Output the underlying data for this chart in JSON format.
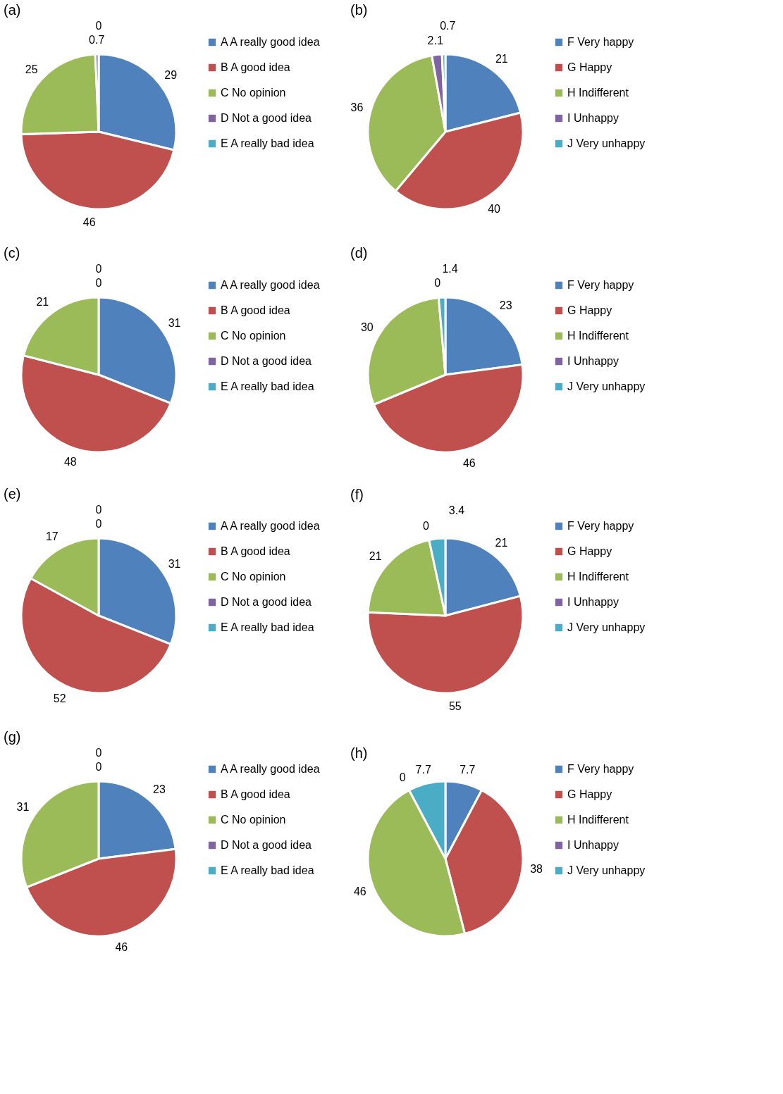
{
  "chart_data": [
    {
      "type": "pie",
      "title": "(a)",
      "categories": [
        "A A really good idea",
        "B A good idea",
        "C No opinion",
        "D Not a good idea",
        "E A really bad idea"
      ],
      "values": [
        29,
        46,
        25,
        0.7,
        0
      ],
      "value_labels": [
        "29",
        "46",
        "25",
        "0.7",
        "0"
      ],
      "colors": [
        "#4f81bd",
        "#c0504d",
        "#9bbb59",
        "#8064a2",
        "#4bacc6"
      ],
      "legend": "right"
    },
    {
      "type": "pie",
      "title": "(b)",
      "categories": [
        "F Very happy",
        "G Happy",
        "H Indifferent",
        "I Unhappy",
        "J Very unhappy"
      ],
      "values": [
        21,
        40,
        36,
        2.1,
        0.7
      ],
      "value_labels": [
        "21",
        "40",
        "36",
        "2.1",
        "0.7"
      ],
      "colors": [
        "#4f81bd",
        "#c0504d",
        "#9bbb59",
        "#8064a2",
        "#4bacc6"
      ],
      "legend": "right"
    },
    {
      "type": "pie",
      "title": "(c)",
      "categories": [
        "A A really good idea",
        "B A good idea",
        "C No opinion",
        "D Not a good idea",
        "E A really bad idea"
      ],
      "values": [
        31,
        48,
        21,
        0,
        0
      ],
      "value_labels": [
        "31",
        "48",
        "21",
        "0",
        "0"
      ],
      "colors": [
        "#4f81bd",
        "#c0504d",
        "#9bbb59",
        "#8064a2",
        "#4bacc6"
      ],
      "legend": "right"
    },
    {
      "type": "pie",
      "title": "(d)",
      "categories": [
        "F Very happy",
        "G Happy",
        "H Indifferent",
        "I Unhappy",
        "J Very unhappy"
      ],
      "values": [
        23,
        46,
        30,
        0,
        1.4
      ],
      "value_labels": [
        "23",
        "46",
        "30",
        "0",
        "1.4"
      ],
      "colors": [
        "#4f81bd",
        "#c0504d",
        "#9bbb59",
        "#8064a2",
        "#4bacc6"
      ],
      "legend": "right"
    },
    {
      "type": "pie",
      "title": "(e)",
      "categories": [
        "A A really good idea",
        "B A good idea",
        "C No opinion",
        "D Not a good idea",
        "E A really bad idea"
      ],
      "values": [
        31,
        52,
        17,
        0,
        0
      ],
      "value_labels": [
        "31",
        "52",
        "17",
        "0",
        "0"
      ],
      "colors": [
        "#4f81bd",
        "#c0504d",
        "#9bbb59",
        "#8064a2",
        "#4bacc6"
      ],
      "legend": "right"
    },
    {
      "type": "pie",
      "title": "(f)",
      "categories": [
        "F Very happy",
        "G Happy",
        "H Indifferent",
        "I Unhappy",
        "J Very unhappy"
      ],
      "values": [
        21,
        55,
        21,
        0,
        3.4
      ],
      "value_labels": [
        "21",
        "55",
        "21",
        "0",
        "3.4"
      ],
      "colors": [
        "#4f81bd",
        "#c0504d",
        "#9bbb59",
        "#8064a2",
        "#4bacc6"
      ],
      "legend": "right"
    },
    {
      "type": "pie",
      "title": "(g)",
      "categories": [
        "A A really good idea",
        "B A good idea",
        "C No opinion",
        "D Not a good idea",
        "E A really bad idea"
      ],
      "values": [
        23,
        46,
        31,
        0,
        0
      ],
      "value_labels": [
        "23",
        "46",
        "31",
        "0",
        "0"
      ],
      "colors": [
        "#4f81bd",
        "#c0504d",
        "#9bbb59",
        "#8064a2",
        "#4bacc6"
      ],
      "legend": "right"
    },
    {
      "type": "pie",
      "title": "(h)",
      "categories": [
        "F Very happy",
        "G Happy",
        "H Indifferent",
        "I Unhappy",
        "J Very unhappy"
      ],
      "values": [
        7.7,
        38,
        46,
        0,
        7.7
      ],
      "value_labels": [
        "7.7",
        "38",
        "46",
        "0",
        "7.7"
      ],
      "colors": [
        "#4f81bd",
        "#c0504d",
        "#9bbb59",
        "#8064a2",
        "#4bacc6"
      ],
      "legend": "right"
    }
  ]
}
